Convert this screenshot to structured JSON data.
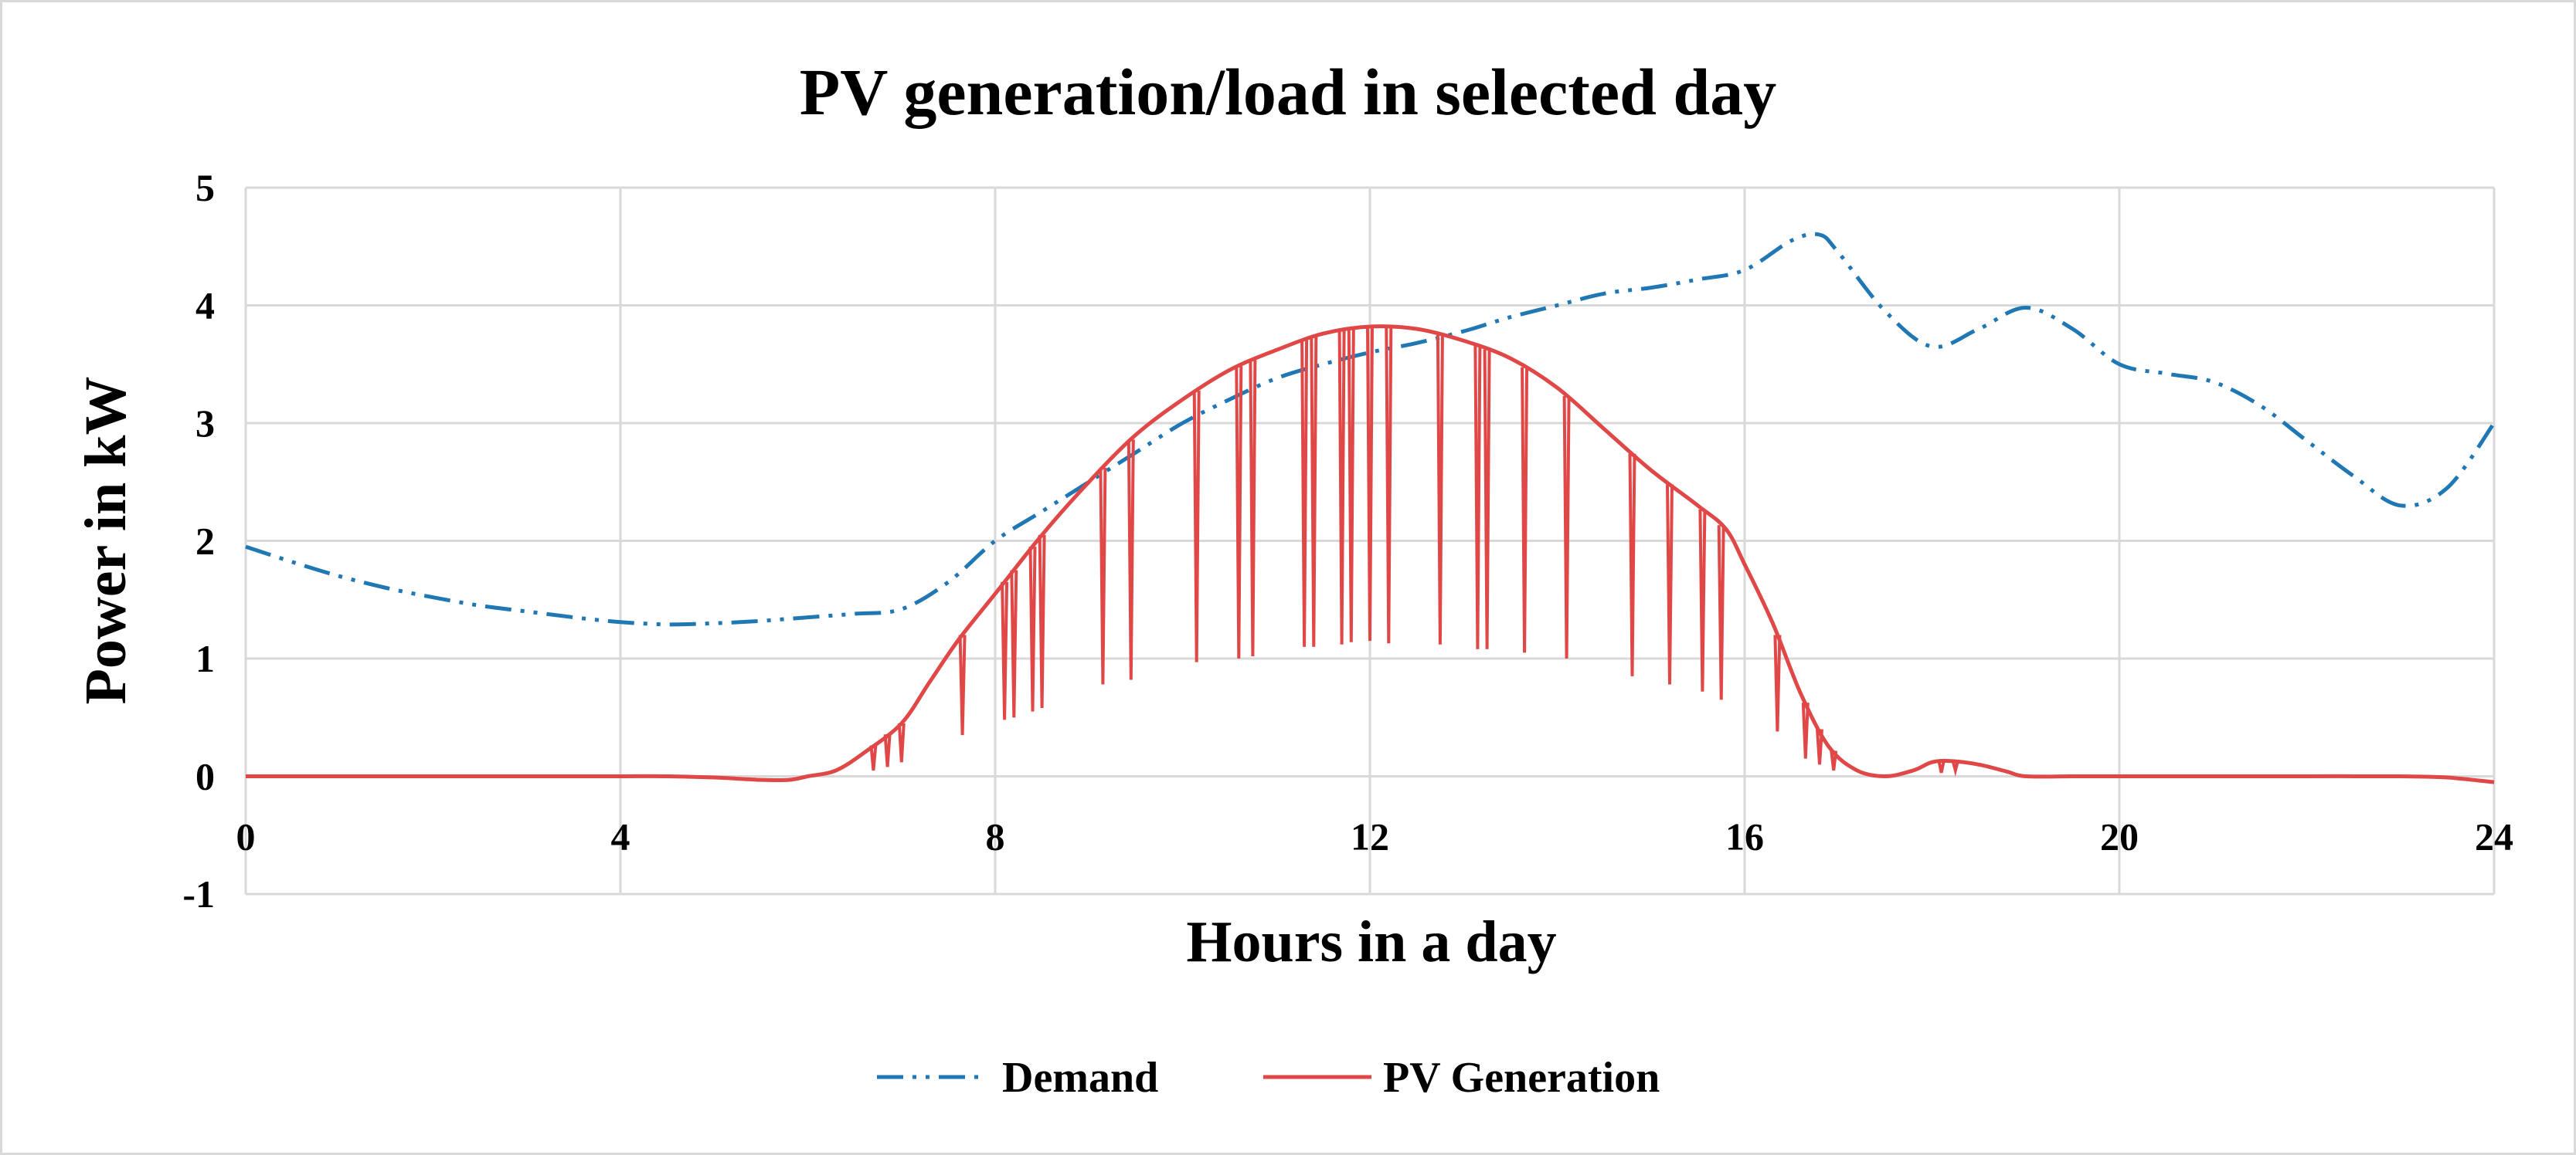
{
  "chart_data": {
    "type": "line",
    "title": "PV generation/load in selected day",
    "xlabel": "Hours in a day",
    "ylabel": "Power in kW",
    "xlim": [
      0,
      24
    ],
    "ylim": [
      -1,
      5
    ],
    "x_ticks": [
      "0",
      "4",
      "8",
      "12",
      "16",
      "20",
      "24"
    ],
    "y_ticks": [
      "-1",
      "0",
      "1",
      "2",
      "3",
      "4",
      "5"
    ],
    "grid": true,
    "legend_position": "bottom",
    "series": [
      {
        "name": "Demand",
        "color": "#1f77b4",
        "line_style": "dash-dot-dot",
        "x": [
          0,
          0.5,
          1,
          1.5,
          2,
          2.5,
          3,
          3.5,
          4,
          4.5,
          5,
          5.5,
          6,
          6.5,
          7,
          7.5,
          8,
          8.5,
          9,
          9.5,
          10,
          10.5,
          11,
          11.5,
          12,
          12.5,
          13,
          13.5,
          14,
          14.5,
          15,
          15.5,
          16,
          16.5,
          16.8,
          17,
          17.5,
          18,
          18.5,
          19,
          19.5,
          20,
          20.5,
          21,
          21.5,
          22,
          22.5,
          23,
          23.5,
          24
        ],
        "y": [
          1.95,
          1.82,
          1.7,
          1.6,
          1.52,
          1.45,
          1.4,
          1.35,
          1.31,
          1.29,
          1.3,
          1.32,
          1.35,
          1.38,
          1.42,
          1.65,
          2.0,
          2.25,
          2.5,
          2.75,
          3.0,
          3.2,
          3.38,
          3.5,
          3.6,
          3.68,
          3.78,
          3.9,
          4.0,
          4.1,
          4.15,
          4.22,
          4.3,
          4.55,
          4.6,
          4.45,
          3.95,
          3.65,
          3.8,
          3.98,
          3.8,
          3.5,
          3.42,
          3.35,
          3.15,
          2.85,
          2.55,
          2.3,
          2.45,
          3.0
        ]
      },
      {
        "name": "PV Generation",
        "color": "#e04848",
        "line_style": "solid",
        "x": [
          0,
          1,
          2,
          3,
          4,
          4.5,
          5,
          5.5,
          5.8,
          6,
          6.3,
          6.6,
          7,
          7.3,
          7.6,
          8,
          8.5,
          9,
          9.5,
          10,
          10.5,
          11,
          11.5,
          12,
          12.5,
          13,
          13.5,
          14,
          14.5,
          15,
          15.5,
          15.8,
          16,
          16.3,
          16.6,
          16.9,
          17.2,
          17.5,
          17.8,
          18,
          18.2,
          18.5,
          18.8,
          19,
          19.5,
          20,
          21,
          22,
          23,
          23.5,
          24
        ],
        "y": [
          0,
          0,
          0,
          0,
          0,
          0,
          -0.01,
          -0.03,
          -0.03,
          0.0,
          0.05,
          0.2,
          0.45,
          0.8,
          1.15,
          1.55,
          2.05,
          2.5,
          2.9,
          3.2,
          3.45,
          3.62,
          3.76,
          3.82,
          3.8,
          3.7,
          3.55,
          3.3,
          2.95,
          2.6,
          2.3,
          2.1,
          1.8,
          1.3,
          0.7,
          0.25,
          0.05,
          0.0,
          0.05,
          0.12,
          0.13,
          0.1,
          0.04,
          0.0,
          0.0,
          0.0,
          0.0,
          0.0,
          0.0,
          -0.01,
          -0.05
        ],
        "dips": [
          [
            6.7,
            0.05
          ],
          [
            6.85,
            0.08
          ],
          [
            7.0,
            0.12
          ],
          [
            7.65,
            0.35
          ],
          [
            8.1,
            0.48
          ],
          [
            8.2,
            0.5
          ],
          [
            8.4,
            0.55
          ],
          [
            8.5,
            0.58
          ],
          [
            9.15,
            0.78
          ],
          [
            9.45,
            0.82
          ],
          [
            10.15,
            0.97
          ],
          [
            10.6,
            1.0
          ],
          [
            10.75,
            1.02
          ],
          [
            11.3,
            1.1
          ],
          [
            11.4,
            1.1
          ],
          [
            11.7,
            1.12
          ],
          [
            11.8,
            1.14
          ],
          [
            12.0,
            1.15
          ],
          [
            12.2,
            1.13
          ],
          [
            12.75,
            1.12
          ],
          [
            13.15,
            1.08
          ],
          [
            13.25,
            1.08
          ],
          [
            13.65,
            1.05
          ],
          [
            14.1,
            1.0
          ],
          [
            14.8,
            0.85
          ],
          [
            15.2,
            0.78
          ],
          [
            15.55,
            0.72
          ],
          [
            15.75,
            0.65
          ],
          [
            16.35,
            0.38
          ],
          [
            16.65,
            0.15
          ],
          [
            16.8,
            0.1
          ],
          [
            16.95,
            0.05
          ],
          [
            18.1,
            0.03
          ],
          [
            18.25,
            0.05
          ]
        ]
      }
    ]
  }
}
